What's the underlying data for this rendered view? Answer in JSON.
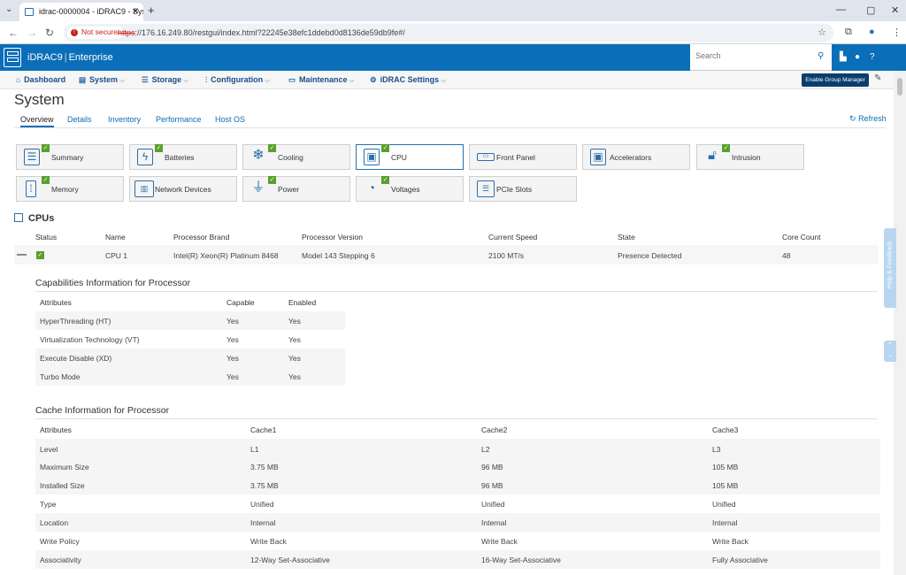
{
  "browser": {
    "tab_title": "idrac-0000004 - iDRAC9 - Syst",
    "new_tab": "+",
    "not_secure": "Not secure",
    "url_scheme": "https",
    "url_rest": "://176.16.249.80/restgui/index.html?22245e38efc1ddebd0d8136de59db9fe#/"
  },
  "header": {
    "brand": "iDRAC9",
    "edition": "Enterprise",
    "search_placeholder": "Search"
  },
  "menu": {
    "dashboard": "Dashboard",
    "system": "System",
    "storage": "Storage",
    "configuration": "Configuration",
    "maintenance": "Maintenance",
    "idrac_settings": "iDRAC Settings",
    "enable_group_manager": "Enable Group Manager"
  },
  "page": {
    "title": "System",
    "tabs": [
      "Overview",
      "Details",
      "Inventory",
      "Performance",
      "Host OS"
    ],
    "refresh": "Refresh"
  },
  "tiles": [
    "Summary",
    "Batteries",
    "Cooling",
    "CPU",
    "Front Panel",
    "Accelerators",
    "Intrusion",
    "Memory",
    "Network Devices",
    "Power",
    "Voltages",
    "PCIe Slots"
  ],
  "feedback": "Help & Feedback",
  "cpus": {
    "heading": "CPUs",
    "columns": [
      "Status",
      "Name",
      "Processor Brand",
      "Processor Version",
      "Current Speed",
      "State",
      "Core Count"
    ],
    "row": {
      "name": "CPU 1",
      "brand": "Intel(R) Xeon(R) Platinum 8468",
      "version": "Model 143 Stepping 6",
      "speed": "2100 MT/s",
      "state": "Presence Detected",
      "cores": "48"
    }
  },
  "capabilities": {
    "heading": "Capabilities Information for Processor",
    "columns": [
      "Attributes",
      "Capable",
      "Enabled"
    ],
    "rows": [
      [
        "HyperThreading (HT)",
        "Yes",
        "Yes"
      ],
      [
        "Virtualization Technology (VT)",
        "Yes",
        "Yes"
      ],
      [
        "Execute Disable (XD)",
        "Yes",
        "Yes"
      ],
      [
        "Turbo Mode",
        "Yes",
        "Yes"
      ]
    ]
  },
  "cache": {
    "heading": "Cache Information for Processor",
    "columns": [
      "Attributes",
      "Cache1",
      "Cache2",
      "Cache3"
    ],
    "rows": [
      [
        "Level",
        "L1",
        "L2",
        "L3"
      ],
      [
        "Maximum Size",
        "3.75 MB",
        "96 MB",
        "105 MB"
      ],
      [
        "Installed Size",
        "3.75 MB",
        "96 MB",
        "105 MB"
      ],
      [
        "Type",
        "Unified",
        "Unified",
        "Unified"
      ],
      [
        "Location",
        "Internal",
        "Internal",
        "Internal"
      ],
      [
        "Write Policy",
        "Write Back",
        "Write Back",
        "Write Back"
      ],
      [
        "Associativity",
        "12-Way Set-Associative",
        "16-Way Set-Associative",
        "Fully Associative"
      ]
    ]
  }
}
